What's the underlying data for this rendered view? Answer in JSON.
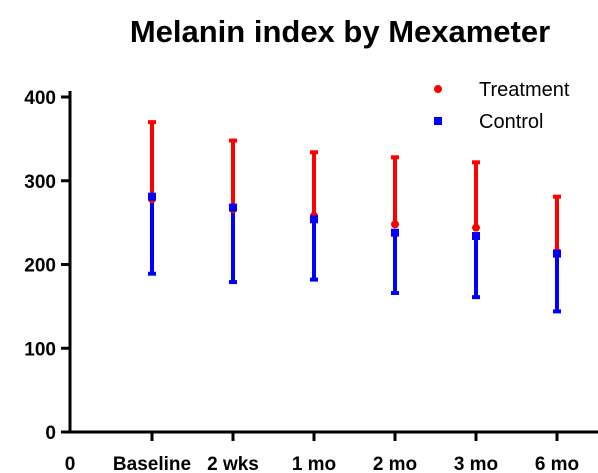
{
  "chart_data": {
    "type": "scatter",
    "title": "Melanin index by Mexameter",
    "xlabel": "",
    "ylabel": "",
    "categories": [
      "Baseline",
      "2 wks",
      "1 mo",
      "2 mo",
      "3 mo",
      "6 mo"
    ],
    "x_origin_label": "0",
    "ylim": [
      0,
      420
    ],
    "yticks": [
      0,
      100,
      200,
      300,
      400
    ],
    "grid": false,
    "legend_position": "top-right",
    "series": [
      {
        "name": "Treatment",
        "color": "#ff0000",
        "marker": "circle",
        "values": [
          278,
          266,
          258,
          248,
          244,
          215
        ],
        "upper": [
          370,
          348,
          334,
          328,
          322,
          281
        ]
      },
      {
        "name": "Control",
        "color": "#0000ff",
        "marker": "square",
        "values": [
          281,
          268,
          254,
          238,
          234,
          213
        ],
        "lower": [
          189,
          179,
          182,
          166,
          161,
          144
        ]
      }
    ]
  }
}
